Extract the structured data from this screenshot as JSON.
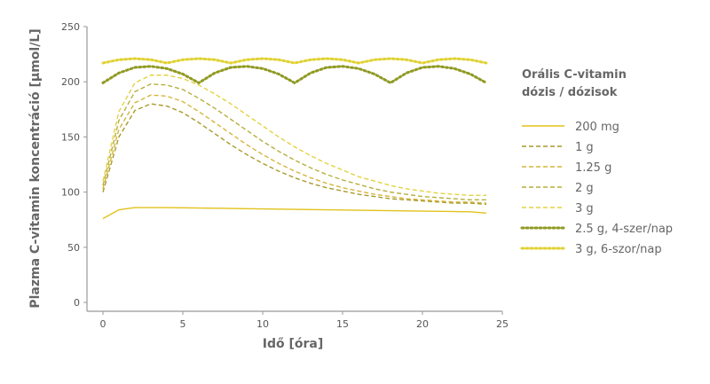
{
  "chart_data": {
    "type": "line",
    "x_label": "Idő [óra]",
    "y_label": "Plazma C-vitamin koncentráció [µmol/L]",
    "legend_title": [
      "Orális C-vitamin",
      "dózis / dózisok"
    ],
    "x": [
      0,
      1,
      2,
      3,
      4,
      5,
      6,
      7,
      8,
      9,
      10,
      11,
      12,
      13,
      14,
      15,
      16,
      17,
      18,
      19,
      20,
      21,
      22,
      23,
      24
    ],
    "xlim": [
      -1,
      25
    ],
    "xticks": [
      0,
      5,
      10,
      15,
      20,
      25
    ],
    "ylim": [
      -8,
      250
    ],
    "yticks": [
      0,
      50,
      100,
      150,
      200,
      250
    ],
    "series": [
      {
        "name": "200 mg",
        "color": "#e2c21c",
        "style": "solid",
        "values": [
          76,
          84,
          86,
          86,
          86,
          85.8,
          85.6,
          85.4,
          85.2,
          85,
          84.8,
          84.6,
          84.4,
          84.2,
          84,
          83.8,
          83.6,
          83.4,
          83.2,
          83,
          82.8,
          82.6,
          82.4,
          82.2,
          81
        ]
      },
      {
        "name": "1 g",
        "color": "#a99a2c",
        "style": "dashed",
        "values": [
          100,
          150,
          174,
          180,
          178,
          172,
          163,
          153,
          143,
          134,
          126,
          119,
          113,
          108,
          104,
          101,
          98,
          96,
          94,
          93,
          92,
          91,
          90,
          90,
          89
        ]
      },
      {
        "name": "1.25 g",
        "color": "#d6b53c",
        "style": "dashed",
        "values": [
          103,
          157,
          181,
          188,
          187,
          182,
          173,
          163,
          153,
          143,
          134,
          126,
          119,
          113,
          108,
          104,
          101,
          98,
          96,
          94,
          93,
          92,
          91,
          91,
          90
        ]
      },
      {
        "name": "2 g",
        "color": "#b7ae3c",
        "style": "dashed",
        "values": [
          106,
          165,
          191,
          198,
          197,
          193,
          185,
          176,
          166,
          156,
          146,
          137,
          129,
          122,
          116,
          111,
          107,
          103,
          100,
          98,
          96,
          95,
          94,
          93,
          93
        ]
      },
      {
        "name": "3 g",
        "color": "#e3d242",
        "style": "dashed",
        "values": [
          110,
          173,
          199,
          206,
          206,
          203,
          197,
          189,
          180,
          170,
          160,
          150,
          141,
          133,
          126,
          120,
          114,
          110,
          106,
          103,
          101,
          99,
          98,
          97,
          97
        ]
      },
      {
        "name": "2.5 g, 4-szer/nap",
        "color": "#8f9a22",
        "style": "dotted",
        "values": [
          199,
          208,
          213,
          214,
          212,
          207,
          199,
          208,
          213,
          214,
          212,
          207,
          199,
          208,
          213,
          214,
          212,
          207,
          199,
          208,
          213,
          214,
          212,
          207,
          199
        ]
      },
      {
        "name": "3 g, 6-szor/nap",
        "color": "#e0d232",
        "style": "dotted",
        "values": [
          217,
          220,
          221,
          220,
          217,
          220,
          221,
          220,
          217,
          220,
          221,
          220,
          217,
          220,
          221,
          220,
          217,
          220,
          221,
          220,
          217,
          220,
          221,
          220,
          217
        ]
      }
    ]
  }
}
